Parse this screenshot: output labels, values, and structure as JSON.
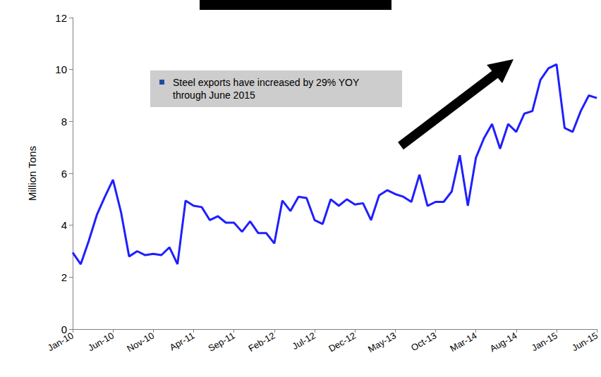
{
  "chart_data": {
    "type": "line",
    "y_label": "Million Tons",
    "annotation": "Steel exports have increased by 29% YOY through June 2015",
    "categories": [
      "Jan-10",
      null,
      null,
      null,
      null,
      "Jun-10",
      null,
      null,
      null,
      null,
      "Nov-10",
      null,
      null,
      null,
      null,
      "Apr-11",
      null,
      null,
      null,
      null,
      "Sep-11",
      null,
      null,
      null,
      null,
      "Feb-12",
      null,
      null,
      null,
      null,
      "Jul-12",
      null,
      null,
      null,
      null,
      "Dec-12",
      null,
      null,
      null,
      null,
      "May-13",
      null,
      null,
      null,
      null,
      "Oct-13",
      null,
      null,
      null,
      null,
      "Mar-14",
      null,
      null,
      null,
      null,
      "Aug-14",
      null,
      null,
      null,
      null,
      "Jan-15",
      null,
      null,
      null,
      null,
      "Jun-15"
    ],
    "values": [
      2.95,
      2.5,
      3.4,
      4.4,
      5.1,
      5.75,
      4.5,
      2.8,
      3.0,
      2.85,
      2.9,
      2.85,
      3.15,
      2.5,
      4.95,
      4.75,
      4.7,
      4.2,
      4.35,
      4.1,
      4.1,
      3.75,
      4.15,
      3.7,
      3.7,
      3.3,
      4.95,
      4.55,
      5.1,
      5.05,
      4.2,
      4.05,
      5.0,
      4.75,
      5.0,
      4.8,
      4.85,
      4.2,
      5.15,
      5.35,
      5.2,
      5.1,
      4.9,
      5.95,
      4.75,
      4.9,
      4.9,
      5.3,
      6.7,
      4.75,
      6.6,
      7.35,
      7.9,
      6.95,
      7.9,
      7.6,
      8.3,
      8.4,
      9.6,
      10.05,
      10.2,
      7.75,
      7.6,
      8.4,
      9.0,
      8.9
    ],
    "color": "#1f1fff",
    "ylim": [
      0,
      12
    ],
    "yticks": [
      0,
      2,
      4,
      6,
      8,
      10,
      12
    ],
    "grid": false
  }
}
